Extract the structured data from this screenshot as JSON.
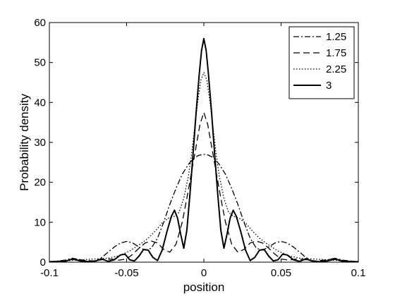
{
  "chart_data": {
    "type": "line",
    "title": "",
    "xlabel": "position",
    "ylabel": "Probability density",
    "xlim": [
      -0.1,
      0.1
    ],
    "ylim": [
      0,
      60
    ],
    "xticks": [
      "-0.1",
      "-0.05",
      "0",
      "0.05",
      "0.1"
    ],
    "yticks": [
      "0",
      "10",
      "20",
      "30",
      "40",
      "50",
      "60"
    ],
    "grid": false,
    "legend_position": "top-right",
    "series": [
      {
        "name": "1.25",
        "dash": "dash-dot",
        "x": [
          -0.1,
          -0.09,
          -0.085,
          -0.08,
          -0.075,
          -0.07,
          -0.066,
          -0.062,
          -0.058,
          -0.054,
          -0.05,
          -0.046,
          -0.042,
          -0.038,
          -0.034,
          -0.03,
          -0.026,
          -0.022,
          -0.018,
          -0.014,
          -0.01,
          -0.006,
          -0.003,
          0,
          0.003,
          0.006,
          0.01,
          0.014,
          0.018,
          0.022,
          0.026,
          0.03,
          0.034,
          0.038,
          0.042,
          0.046,
          0.05,
          0.054,
          0.058,
          0.062,
          0.066,
          0.07,
          0.075,
          0.08,
          0.085,
          0.09,
          0.1
        ],
        "y": [
          0.1,
          0.5,
          1.0,
          0.6,
          0.2,
          0.3,
          1.2,
          2.5,
          3.8,
          4.8,
          5.2,
          4.8,
          3.8,
          3.0,
          3.5,
          6.0,
          10.0,
          14.5,
          18.5,
          22.0,
          24.5,
          26.2,
          26.8,
          27.0,
          26.8,
          26.2,
          24.5,
          22.0,
          18.5,
          14.5,
          10.0,
          6.0,
          3.5,
          3.0,
          3.8,
          4.8,
          5.2,
          4.8,
          3.8,
          2.5,
          1.2,
          0.3,
          0.2,
          0.6,
          1.0,
          0.5,
          0.1
        ]
      },
      {
        "name": "1.75",
        "dash": "dashed",
        "x": [
          -0.1,
          -0.09,
          -0.083,
          -0.078,
          -0.072,
          -0.066,
          -0.06,
          -0.055,
          -0.05,
          -0.046,
          -0.042,
          -0.038,
          -0.034,
          -0.03,
          -0.026,
          -0.022,
          -0.018,
          -0.014,
          -0.011,
          -0.008,
          -0.005,
          -0.0025,
          0,
          0.0025,
          0.005,
          0.008,
          0.011,
          0.014,
          0.018,
          0.022,
          0.026,
          0.03,
          0.034,
          0.038,
          0.042,
          0.046,
          0.05,
          0.055,
          0.06,
          0.066,
          0.072,
          0.078,
          0.083,
          0.09,
          0.1
        ],
        "y": [
          0.1,
          0.4,
          0.8,
          0.5,
          0.3,
          0.6,
          0.8,
          0.5,
          0.8,
          2.0,
          3.5,
          4.8,
          5.3,
          4.8,
          3.2,
          2.5,
          4.5,
          10.0,
          16.0,
          22.5,
          29.0,
          34.5,
          37.5,
          34.5,
          29.0,
          22.5,
          16.0,
          10.0,
          4.5,
          2.5,
          3.2,
          4.8,
          5.3,
          4.8,
          3.5,
          2.0,
          0.8,
          0.5,
          0.8,
          0.6,
          0.3,
          0.5,
          0.8,
          0.4,
          0.1
        ]
      },
      {
        "name": "2.25",
        "dash": "dotted",
        "x": [
          -0.1,
          -0.09,
          -0.08,
          -0.07,
          -0.062,
          -0.055,
          -0.048,
          -0.042,
          -0.036,
          -0.031,
          -0.027,
          -0.023,
          -0.019,
          -0.016,
          -0.013,
          -0.01,
          -0.008,
          -0.006,
          -0.004,
          -0.002,
          0,
          0.002,
          0.004,
          0.006,
          0.008,
          0.01,
          0.013,
          0.016,
          0.019,
          0.023,
          0.027,
          0.031,
          0.036,
          0.042,
          0.048,
          0.055,
          0.062,
          0.07,
          0.08,
          0.09,
          0.1
        ],
        "y": [
          0.1,
          0.3,
          0.6,
          0.8,
          1.0,
          1.6,
          2.8,
          4.3,
          6.0,
          8.0,
          9.8,
          11.0,
          11.5,
          12.5,
          16.0,
          21.5,
          27.0,
          33.5,
          40.0,
          45.5,
          47.5,
          45.5,
          40.0,
          33.5,
          27.0,
          21.5,
          16.0,
          12.5,
          11.5,
          11.0,
          9.8,
          8.0,
          6.0,
          4.3,
          2.8,
          1.6,
          1.0,
          0.8,
          0.6,
          0.3,
          0.1
        ]
      },
      {
        "name": "3",
        "dash": "solid",
        "x": [
          -0.1,
          -0.09,
          -0.085,
          -0.08,
          -0.075,
          -0.07,
          -0.066,
          -0.062,
          -0.058,
          -0.054,
          -0.051,
          -0.048,
          -0.045,
          -0.042,
          -0.039,
          -0.036,
          -0.033,
          -0.03,
          -0.027,
          -0.024,
          -0.021,
          -0.019,
          -0.017,
          -0.015,
          -0.013,
          -0.011,
          -0.009,
          -0.007,
          -0.005,
          -0.003,
          -0.0015,
          0,
          0.0015,
          0.003,
          0.005,
          0.007,
          0.009,
          0.011,
          0.013,
          0.015,
          0.017,
          0.019,
          0.021,
          0.024,
          0.027,
          0.03,
          0.033,
          0.036,
          0.039,
          0.042,
          0.045,
          0.048,
          0.051,
          0.054,
          0.058,
          0.062,
          0.066,
          0.07,
          0.075,
          0.08,
          0.085,
          0.09,
          0.1
        ],
        "y": [
          0.1,
          0.2,
          0.8,
          0.3,
          0.1,
          0.3,
          0.8,
          0.2,
          0.6,
          1.8,
          2.0,
          0.6,
          0.3,
          1.5,
          3.2,
          3.0,
          1.2,
          0.4,
          3.0,
          7.5,
          11.5,
          13.0,
          11.0,
          7.0,
          3.5,
          8.0,
          17.0,
          27.0,
          37.5,
          47.0,
          53.0,
          56.0,
          53.0,
          47.0,
          37.5,
          27.0,
          17.0,
          8.0,
          3.5,
          7.0,
          11.0,
          13.0,
          11.5,
          7.5,
          3.0,
          0.4,
          1.2,
          3.0,
          3.2,
          1.5,
          0.3,
          0.6,
          2.0,
          1.8,
          0.6,
          0.2,
          0.8,
          0.3,
          0.1,
          0.3,
          0.8,
          0.2,
          0.1
        ]
      }
    ]
  }
}
